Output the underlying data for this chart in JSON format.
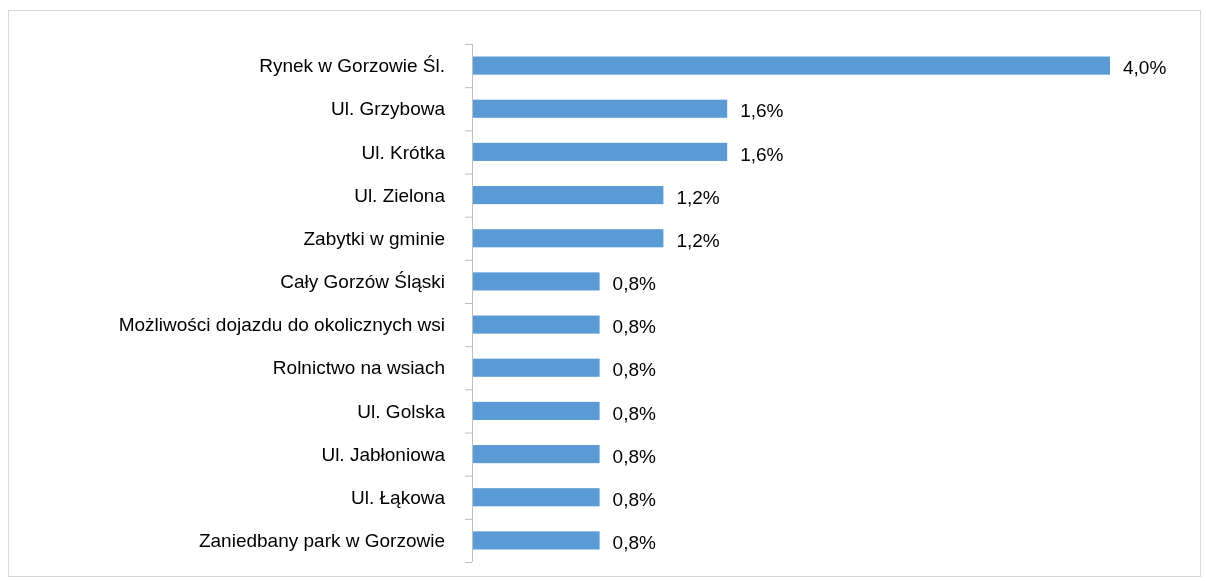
{
  "chart_data": {
    "type": "bar",
    "orientation": "horizontal",
    "categories": [
      "Rynek w Gorzowie Śl.",
      "Ul. Grzybowa",
      "Ul. Krótka",
      "Ul. Zielona",
      "Zabytki w gminie",
      "Cały Gorzów Śląski",
      "Możliwości dojazdu do okolicznych wsi",
      "Rolnictwo na wsiach",
      "Ul. Golska",
      "Ul. Jabłoniowa",
      "Ul. Łąkowa",
      "Zaniedbany park w Gorzowie"
    ],
    "values": [
      4.0,
      1.6,
      1.6,
      1.2,
      1.2,
      0.8,
      0.8,
      0.8,
      0.8,
      0.8,
      0.8,
      0.8
    ],
    "value_labels": [
      "4,0%",
      "1,6%",
      "1,6%",
      "1,2%",
      "1,2%",
      "0,8%",
      "0,8%",
      "0,8%",
      "0,8%",
      "0,8%",
      "0,8%",
      "0,8%"
    ],
    "color": "#5b9bd5",
    "xlim": [
      0,
      4
    ],
    "tick_labels": "y"
  }
}
